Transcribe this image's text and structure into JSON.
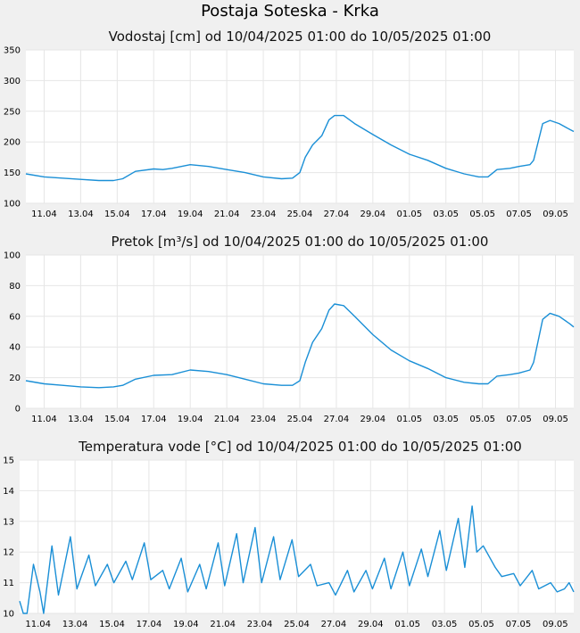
{
  "page_title": "Postaja Soteska - Krka",
  "chart_data": [
    {
      "type": "line",
      "title": "Vodostaj [cm] od 10/04/2025 01:00 do 10/05/2025 01:00",
      "ylim": [
        100,
        350
      ],
      "yticks": [
        100,
        150,
        200,
        250,
        300,
        350
      ],
      "xlim": [
        0,
        30
      ],
      "xticks": [
        {
          "x": 1,
          "label": "11.04"
        },
        {
          "x": 3,
          "label": "13.04"
        },
        {
          "x": 5,
          "label": "15.04"
        },
        {
          "x": 7,
          "label": "17.04"
        },
        {
          "x": 9,
          "label": "19.04"
        },
        {
          "x": 11,
          "label": "21.04"
        },
        {
          "x": 13,
          "label": "23.04"
        },
        {
          "x": 15,
          "label": "25.04"
        },
        {
          "x": 17,
          "label": "27.04"
        },
        {
          "x": 19,
          "label": "29.04"
        },
        {
          "x": 21,
          "label": "01.05"
        },
        {
          "x": 23,
          "label": "03.05"
        },
        {
          "x": 25,
          "label": "05.05"
        },
        {
          "x": 27,
          "label": "07.05"
        },
        {
          "x": 29,
          "label": "09.05"
        }
      ],
      "grid": true,
      "color": "#1a8fd6",
      "x": [
        0,
        1,
        2,
        3,
        4,
        4.8,
        5.3,
        6,
        7,
        7.5,
        8,
        9,
        10,
        11,
        12,
        13,
        14,
        14.6,
        15,
        15.3,
        15.7,
        16.2,
        16.6,
        16.9,
        17.4,
        18,
        19,
        20,
        21,
        22,
        23,
        24,
        24.8,
        25.3,
        25.8,
        26.5,
        27,
        27.6,
        27.8,
        28.3,
        28.7,
        29.2,
        29.8,
        30
      ],
      "y": [
        148,
        143,
        141,
        139,
        137,
        137,
        140,
        152,
        156,
        155,
        157,
        163,
        160,
        155,
        150,
        143,
        140,
        141,
        150,
        175,
        195,
        210,
        236,
        243,
        243,
        230,
        212,
        195,
        180,
        170,
        157,
        148,
        143,
        143,
        155,
        157,
        160,
        163,
        170,
        230,
        235,
        230,
        220,
        217
      ]
    },
    {
      "type": "line",
      "title": "Pretok [m³/s] od 10/04/2025 01:00 do 10/05/2025 01:00",
      "ylim": [
        0,
        100
      ],
      "yticks": [
        0,
        20,
        40,
        60,
        80,
        100
      ],
      "xlim": [
        0,
        30
      ],
      "xticks": [
        {
          "x": 1,
          "label": "11.04"
        },
        {
          "x": 3,
          "label": "13.04"
        },
        {
          "x": 5,
          "label": "15.04"
        },
        {
          "x": 7,
          "label": "17.04"
        },
        {
          "x": 9,
          "label": "19.04"
        },
        {
          "x": 11,
          "label": "21.04"
        },
        {
          "x": 13,
          "label": "23.04"
        },
        {
          "x": 15,
          "label": "25.04"
        },
        {
          "x": 17,
          "label": "27.04"
        },
        {
          "x": 19,
          "label": "29.04"
        },
        {
          "x": 21,
          "label": "01.05"
        },
        {
          "x": 23,
          "label": "03.05"
        },
        {
          "x": 25,
          "label": "05.05"
        },
        {
          "x": 27,
          "label": "07.05"
        },
        {
          "x": 29,
          "label": "09.05"
        }
      ],
      "grid": true,
      "color": "#1a8fd6",
      "x": [
        0,
        1,
        2,
        3,
        4,
        4.8,
        5.3,
        6,
        7,
        8,
        9,
        10,
        11,
        12,
        13,
        14,
        14.6,
        15,
        15.3,
        15.7,
        16.2,
        16.6,
        16.9,
        17.4,
        18,
        19,
        20,
        21,
        22,
        23,
        24,
        24.8,
        25.3,
        25.8,
        26.5,
        27,
        27.6,
        27.8,
        28.3,
        28.7,
        29.2,
        29.8,
        30
      ],
      "y": [
        18,
        16,
        15,
        14,
        13.5,
        14,
        15,
        19,
        21.5,
        22,
        25,
        24,
        22,
        19,
        16,
        15,
        15,
        18,
        30,
        43,
        52,
        64,
        68,
        67,
        60,
        48,
        38,
        31,
        26,
        20,
        17,
        16,
        16,
        21,
        22,
        23,
        25,
        30,
        58,
        62,
        60,
        55,
        53
      ]
    },
    {
      "type": "line",
      "title": "Temperatura vode [°C] od 10/04/2025 01:00 do 10/05/2025 01:00",
      "ylim": [
        10,
        15
      ],
      "yticks": [
        10,
        11,
        12,
        13,
        14,
        15
      ],
      "xlim": [
        0,
        30
      ],
      "xticks": [
        {
          "x": 1,
          "label": "11.04"
        },
        {
          "x": 3,
          "label": "13.04"
        },
        {
          "x": 5,
          "label": "15.04"
        },
        {
          "x": 7,
          "label": "17.04"
        },
        {
          "x": 9,
          "label": "19.04"
        },
        {
          "x": 11,
          "label": "21.04"
        },
        {
          "x": 13,
          "label": "23.04"
        },
        {
          "x": 15,
          "label": "25.04"
        },
        {
          "x": 17,
          "label": "27.04"
        },
        {
          "x": 19,
          "label": "29.04"
        },
        {
          "x": 21,
          "label": "01.05"
        },
        {
          "x": 23,
          "label": "03.05"
        },
        {
          "x": 25,
          "label": "05.05"
        },
        {
          "x": 27,
          "label": "07.05"
        },
        {
          "x": 29,
          "label": "09.05"
        }
      ],
      "grid": true,
      "color": "#1a8fd6",
      "x": [
        0,
        0.2,
        0.4,
        0.75,
        1.1,
        1.3,
        1.75,
        2.1,
        2.75,
        3.1,
        3.75,
        4.1,
        4.75,
        5.1,
        5.75,
        6.1,
        6.75,
        7.1,
        7.75,
        8.1,
        8.75,
        9.1,
        9.75,
        10.1,
        10.75,
        11.1,
        11.75,
        12.1,
        12.75,
        13.1,
        13.75,
        14.1,
        14.75,
        15.1,
        15.75,
        16.1,
        16.75,
        17.1,
        17.75,
        18.1,
        18.75,
        19.1,
        19.75,
        20.1,
        20.75,
        21.1,
        21.75,
        22.1,
        22.75,
        23.1,
        23.75,
        24.1,
        24.5,
        24.75,
        25.1,
        25.75,
        26.1,
        26.75,
        27.1,
        27.75,
        28.1,
        28.75,
        29.1,
        29.5,
        29.75,
        30
      ],
      "y": [
        10.4,
        10.0,
        10.0,
        11.6,
        10.7,
        10.0,
        12.2,
        10.6,
        12.5,
        10.8,
        11.9,
        10.9,
        11.6,
        11.0,
        11.7,
        11.1,
        12.3,
        11.1,
        11.4,
        10.8,
        11.8,
        10.7,
        11.6,
        10.8,
        12.3,
        10.9,
        12.6,
        11.0,
        12.8,
        11.0,
        12.5,
        11.1,
        12.4,
        11.2,
        11.6,
        10.9,
        11.0,
        10.6,
        11.4,
        10.7,
        11.4,
        10.8,
        11.8,
        10.8,
        12.0,
        10.9,
        12.1,
        11.2,
        12.7,
        11.4,
        13.1,
        11.5,
        13.5,
        12.0,
        12.2,
        11.5,
        11.2,
        11.3,
        10.9,
        11.4,
        10.8,
        11.0,
        10.7,
        10.8,
        11.0,
        10.7
      ]
    }
  ]
}
